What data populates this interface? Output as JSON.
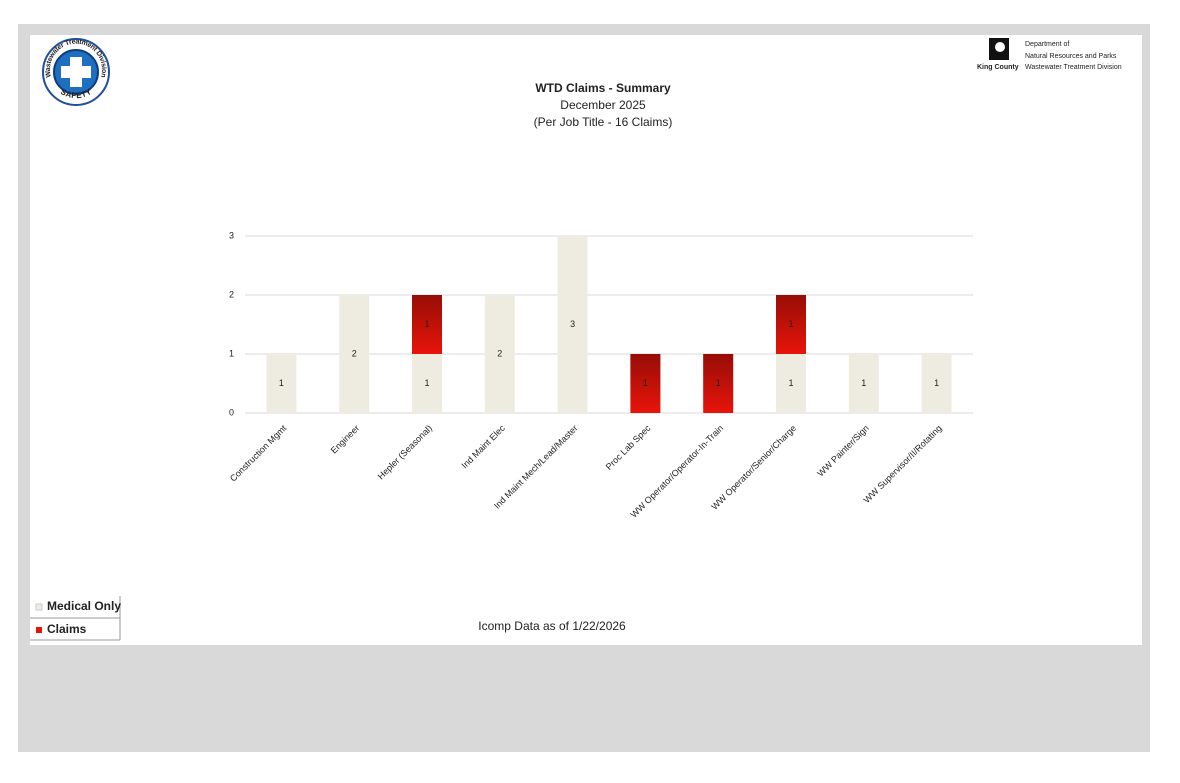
{
  "header": {
    "safety_ring": "Wastewater Treatment Division",
    "safety_word": "SAFETY",
    "dept_line1": "Department of",
    "dept_line2": "Natural Resources and Parks",
    "county": "King County",
    "division": "Wastewater Treatment Division"
  },
  "chart_data": {
    "type": "stacked-bar",
    "title": "WTD Claims - Summary",
    "subtitle": "December 2025",
    "subtitle2": "(Per Job Title - 16 Claims)",
    "categories": [
      "Construction Mgmt",
      "Engineer",
      "Hepler (Seasonal)",
      "Ind Maint Elec",
      "Ind Maint Mech/Lead/Master",
      "Proc Lab Spec",
      "WW Operator/Operator-In-Train",
      "WW Operator/Senior/Charge",
      "WW Painter/Sign",
      "WW Supervisor/II/Rotating"
    ],
    "series": [
      {
        "name": "Medical Only",
        "color": "#eeece1",
        "values": [
          1,
          2,
          1,
          2,
          3,
          null,
          null,
          1,
          1,
          1
        ]
      },
      {
        "name": "Claims",
        "color": "#e8140a",
        "values": [
          null,
          null,
          1,
          null,
          null,
          1,
          1,
          1,
          null,
          null
        ]
      }
    ],
    "ylim": [
      0,
      3
    ],
    "yticks": [
      0,
      1,
      2,
      3
    ],
    "grid": true
  },
  "footer": "Icomp Data as of 1/22/2026"
}
